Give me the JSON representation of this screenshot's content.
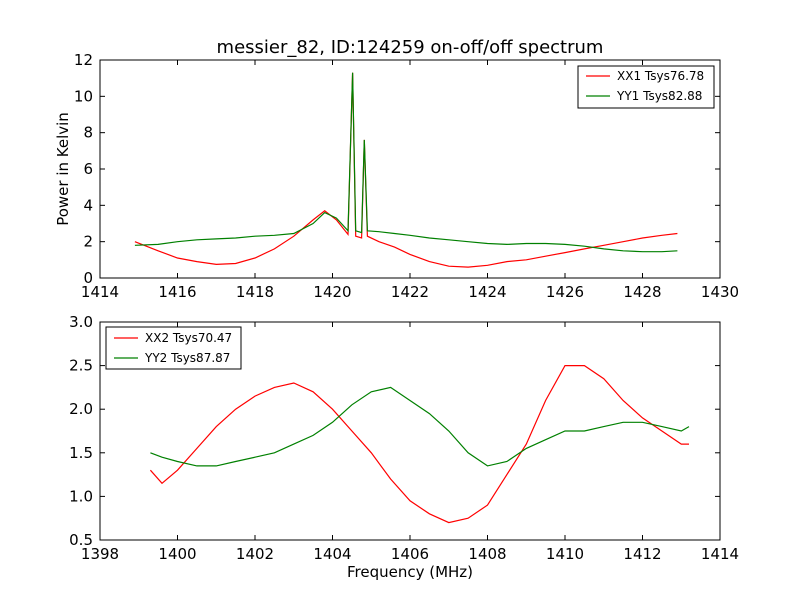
{
  "figure": {
    "title": "messier_82, ID:124259 on-off/off spectrum",
    "xlabel": "Frequency (MHz)",
    "ylabel": "Power in Kelvin"
  },
  "chart_data": [
    {
      "type": "line",
      "title": "messier_82, ID:124259 on-off/off spectrum",
      "xlabel": "",
      "ylabel": "Power in Kelvin",
      "xlim": [
        1414,
        1430
      ],
      "ylim": [
        0,
        12
      ],
      "xticks": [
        "1414",
        "1416",
        "1418",
        "1420",
        "1422",
        "1424",
        "1426",
        "1428",
        "1430"
      ],
      "yticks": [
        "0",
        "2",
        "4",
        "6",
        "8",
        "10",
        "12"
      ],
      "grid": false,
      "legend": "top-right",
      "series": [
        {
          "name": "XX1 Tsys76.78",
          "color": "#ff0000",
          "x": [
            1414.9,
            1415.5,
            1416,
            1416.5,
            1417,
            1417.5,
            1418,
            1418.5,
            1419,
            1419.5,
            1419.8,
            1420.1,
            1420.4,
            1420.52,
            1420.6,
            1420.75,
            1420.82,
            1420.9,
            1421.2,
            1421.6,
            1422,
            1422.5,
            1423,
            1423.5,
            1424,
            1424.5,
            1425,
            1425.5,
            1426,
            1426.5,
            1427,
            1427.5,
            1428,
            1428.5,
            1428.9
          ],
          "y": [
            2.0,
            1.5,
            1.1,
            0.9,
            0.75,
            0.8,
            1.1,
            1.6,
            2.3,
            3.2,
            3.7,
            3.2,
            2.4,
            11.3,
            2.3,
            2.2,
            7.6,
            2.3,
            2.0,
            1.7,
            1.3,
            0.9,
            0.65,
            0.6,
            0.7,
            0.9,
            1.0,
            1.2,
            1.4,
            1.6,
            1.8,
            2.0,
            2.2,
            2.35,
            2.45
          ]
        },
        {
          "name": "YY1 Tsys82.88",
          "color": "#008000",
          "x": [
            1414.9,
            1415.5,
            1416,
            1416.5,
            1417,
            1417.5,
            1418,
            1418.5,
            1419,
            1419.5,
            1419.8,
            1420.1,
            1420.4,
            1420.52,
            1420.6,
            1420.75,
            1420.82,
            1420.9,
            1421.2,
            1421.6,
            1422,
            1422.5,
            1423,
            1423.5,
            1424,
            1424.5,
            1425,
            1425.5,
            1426,
            1426.5,
            1427,
            1427.5,
            1428,
            1428.5,
            1428.9
          ],
          "y": [
            1.8,
            1.85,
            2.0,
            2.1,
            2.15,
            2.2,
            2.3,
            2.35,
            2.45,
            3.0,
            3.6,
            3.3,
            2.6,
            11.3,
            2.6,
            2.5,
            7.6,
            2.6,
            2.55,
            2.45,
            2.35,
            2.2,
            2.1,
            2.0,
            1.9,
            1.85,
            1.9,
            1.9,
            1.85,
            1.75,
            1.6,
            1.5,
            1.45,
            1.45,
            1.5
          ]
        }
      ]
    },
    {
      "type": "line",
      "title": "",
      "xlabel": "Frequency (MHz)",
      "ylabel": "",
      "xlim": [
        1398,
        1414
      ],
      "ylim": [
        0.5,
        3.0
      ],
      "xticks": [
        "1398",
        "1400",
        "1402",
        "1404",
        "1406",
        "1408",
        "1410",
        "1412",
        "1414"
      ],
      "yticks": [
        "0.5",
        "1.0",
        "1.5",
        "2.0",
        "2.5",
        "3.0"
      ],
      "grid": false,
      "legend": "top-left",
      "series": [
        {
          "name": "XX2 Tsys70.47",
          "color": "#ff0000",
          "x": [
            1399.3,
            1399.6,
            1400,
            1400.5,
            1401,
            1401.5,
            1402,
            1402.5,
            1403,
            1403.5,
            1404,
            1404.5,
            1405,
            1405.5,
            1406,
            1406.5,
            1407,
            1407.5,
            1408,
            1408.5,
            1409,
            1409.5,
            1410,
            1410.5,
            1411,
            1411.5,
            1412,
            1412.5,
            1413,
            1413.2
          ],
          "y": [
            1.3,
            1.15,
            1.3,
            1.55,
            1.8,
            2.0,
            2.15,
            2.25,
            2.3,
            2.2,
            2.0,
            1.75,
            1.5,
            1.2,
            0.95,
            0.8,
            0.7,
            0.75,
            0.9,
            1.25,
            1.6,
            2.1,
            2.5,
            2.5,
            2.35,
            2.1,
            1.9,
            1.75,
            1.6,
            1.6
          ]
        },
        {
          "name": "YY2 Tsys87.87",
          "color": "#008000",
          "x": [
            1399.3,
            1399.6,
            1400,
            1400.5,
            1401,
            1401.5,
            1402,
            1402.5,
            1403,
            1403.5,
            1404,
            1404.5,
            1405,
            1405.5,
            1406,
            1406.5,
            1407,
            1407.5,
            1408,
            1408.5,
            1409,
            1409.5,
            1410,
            1410.5,
            1411,
            1411.5,
            1412,
            1412.5,
            1413,
            1413.2
          ],
          "y": [
            1.5,
            1.45,
            1.4,
            1.35,
            1.35,
            1.4,
            1.45,
            1.5,
            1.6,
            1.7,
            1.85,
            2.05,
            2.2,
            2.25,
            2.1,
            1.95,
            1.75,
            1.5,
            1.35,
            1.4,
            1.55,
            1.65,
            1.75,
            1.75,
            1.8,
            1.85,
            1.85,
            1.8,
            1.75,
            1.8
          ]
        }
      ]
    }
  ]
}
